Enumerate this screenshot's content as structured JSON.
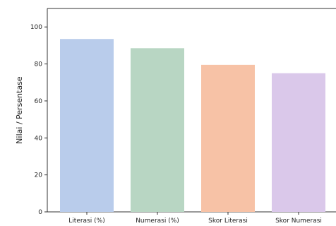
{
  "chart_data": {
    "type": "bar",
    "categories": [
      "Literasi (%)",
      "Numerasi (%)",
      "Skor Literasi",
      "Skor Numerasi"
    ],
    "values": [
      93.5,
      88.5,
      79.5,
      75.0
    ],
    "colors": [
      "#b9cceb",
      "#b8d6c3",
      "#f7c2a6",
      "#dac8ea"
    ],
    "title": "",
    "xlabel": "",
    "ylabel": "Nilai / Persentase",
    "ylim": [
      0,
      110
    ],
    "yticks": [
      0,
      20,
      40,
      60,
      80,
      100
    ],
    "grid": false,
    "legend": "none"
  }
}
